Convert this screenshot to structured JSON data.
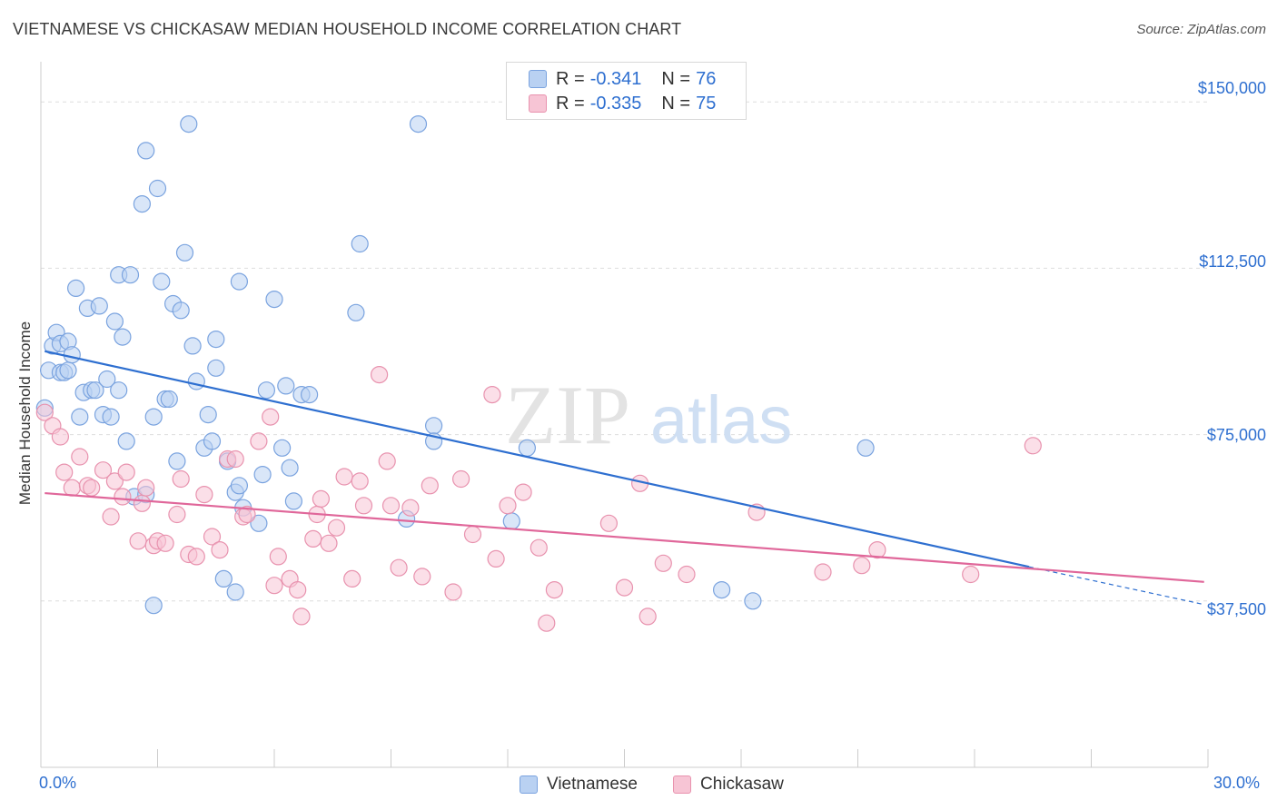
{
  "title": "VIETNAMESE VS CHICKASAW MEDIAN HOUSEHOLD INCOME CORRELATION CHART",
  "source": "Source: ZipAtlas.com",
  "watermark": {
    "zip": "ZIP",
    "atlas": "atlas"
  },
  "legend": {
    "r_label": "R =",
    "n_label": "N =",
    "rows": [
      {
        "r": "-0.341",
        "n": "76",
        "fill": "#b9d1f2",
        "stroke": "#7aa3df"
      },
      {
        "r": "-0.335",
        "n": "75",
        "fill": "#f7c5d5",
        "stroke": "#e892ae"
      }
    ]
  },
  "chart_data": {
    "type": "scatter",
    "title": "VIETNAMESE VS CHICKASAW MEDIAN HOUSEHOLD INCOME CORRELATION CHART",
    "xlabel": "",
    "ylabel": "Median Household Income",
    "xlim": [
      0,
      30
    ],
    "ylim": [
      0,
      157000
    ],
    "x_tick_labels": [
      "0.0%",
      "30.0%"
    ],
    "y_tick_values": [
      37500,
      75000,
      112500,
      150000
    ],
    "y_tick_labels": [
      "$37,500",
      "$75,000",
      "$112,500",
      "$150,000"
    ],
    "grid": true,
    "legend_position": "top-center",
    "series": [
      {
        "name": "Vietnamese",
        "color": "#2e6fd0",
        "marker_fill": "#b9d1f2",
        "marker_stroke": "#7aa3df",
        "trend": {
          "x": [
            0.1,
            25.4,
            29.9
          ],
          "y": [
            93800,
            45200,
            36700
          ],
          "dashed_from": 25.4
        },
        "points": [
          [
            0.1,
            81000
          ],
          [
            0.2,
            89500
          ],
          [
            0.3,
            95000
          ],
          [
            0.4,
            98000
          ],
          [
            0.5,
            95500
          ],
          [
            0.5,
            89000
          ],
          [
            0.6,
            89000
          ],
          [
            0.7,
            89500
          ],
          [
            0.7,
            96000
          ],
          [
            0.8,
            93000
          ],
          [
            0.9,
            108000
          ],
          [
            1.0,
            79000
          ],
          [
            1.1,
            84500
          ],
          [
            1.2,
            103500
          ],
          [
            1.3,
            85000
          ],
          [
            1.4,
            85000
          ],
          [
            1.5,
            104000
          ],
          [
            1.6,
            79500
          ],
          [
            1.7,
            87500
          ],
          [
            1.8,
            79000
          ],
          [
            1.9,
            100500
          ],
          [
            2.0,
            85000
          ],
          [
            2.0,
            111000
          ],
          [
            2.1,
            97000
          ],
          [
            2.2,
            73500
          ],
          [
            2.3,
            111000
          ],
          [
            2.4,
            61000
          ],
          [
            2.6,
            127000
          ],
          [
            2.7,
            139000
          ],
          [
            2.7,
            61500
          ],
          [
            2.9,
            79000
          ],
          [
            2.9,
            36500
          ],
          [
            3.0,
            130500
          ],
          [
            3.1,
            109500
          ],
          [
            3.2,
            83000
          ],
          [
            3.3,
            83000
          ],
          [
            3.4,
            104500
          ],
          [
            3.5,
            69000
          ],
          [
            3.6,
            103000
          ],
          [
            3.7,
            116000
          ],
          [
            3.8,
            145000
          ],
          [
            3.9,
            95000
          ],
          [
            4.0,
            87000
          ],
          [
            4.2,
            72000
          ],
          [
            4.3,
            79500
          ],
          [
            4.4,
            73500
          ],
          [
            4.5,
            90000
          ],
          [
            4.5,
            96500
          ],
          [
            4.7,
            42500
          ],
          [
            4.8,
            69000
          ],
          [
            5.0,
            62000
          ],
          [
            5.0,
            39500
          ],
          [
            5.1,
            63500
          ],
          [
            5.1,
            109500
          ],
          [
            5.2,
            58500
          ],
          [
            5.6,
            55000
          ],
          [
            5.7,
            66000
          ],
          [
            5.8,
            85000
          ],
          [
            6.0,
            105500
          ],
          [
            6.2,
            72000
          ],
          [
            6.3,
            86000
          ],
          [
            6.4,
            67500
          ],
          [
            6.5,
            60000
          ],
          [
            6.7,
            84000
          ],
          [
            6.9,
            84000
          ],
          [
            8.1,
            102500
          ],
          [
            8.2,
            118000
          ],
          [
            9.4,
            56000
          ],
          [
            9.7,
            145000
          ],
          [
            10.1,
            77000
          ],
          [
            10.1,
            73500
          ],
          [
            12.1,
            55500
          ],
          [
            12.5,
            72000
          ],
          [
            17.5,
            40000
          ],
          [
            18.3,
            37500
          ],
          [
            21.2,
            72000
          ]
        ]
      },
      {
        "name": "Chickasaw",
        "color": "#e0679a",
        "marker_fill": "#f7c5d5",
        "marker_stroke": "#e892ae",
        "trend": {
          "x": [
            0.1,
            29.9
          ],
          "y": [
            61800,
            41800
          ]
        },
        "points": [
          [
            0.1,
            80000
          ],
          [
            0.3,
            77000
          ],
          [
            0.5,
            74500
          ],
          [
            0.6,
            66500
          ],
          [
            0.8,
            63000
          ],
          [
            1.0,
            70000
          ],
          [
            1.2,
            63500
          ],
          [
            1.3,
            63000
          ],
          [
            1.6,
            67000
          ],
          [
            1.8,
            56500
          ],
          [
            1.9,
            64500
          ],
          [
            2.1,
            61000
          ],
          [
            2.2,
            66500
          ],
          [
            2.5,
            51000
          ],
          [
            2.6,
            59500
          ],
          [
            2.7,
            63000
          ],
          [
            2.9,
            50000
          ],
          [
            3.0,
            51000
          ],
          [
            3.2,
            50500
          ],
          [
            3.5,
            57000
          ],
          [
            3.6,
            65000
          ],
          [
            3.8,
            48000
          ],
          [
            4.0,
            47500
          ],
          [
            4.2,
            61500
          ],
          [
            4.4,
            52000
          ],
          [
            4.6,
            49000
          ],
          [
            4.8,
            69500
          ],
          [
            5.0,
            69500
          ],
          [
            5.2,
            56500
          ],
          [
            5.3,
            57000
          ],
          [
            5.6,
            73500
          ],
          [
            5.9,
            79000
          ],
          [
            6.0,
            41000
          ],
          [
            6.1,
            47500
          ],
          [
            6.4,
            42500
          ],
          [
            6.6,
            40000
          ],
          [
            6.7,
            34000
          ],
          [
            7.0,
            51500
          ],
          [
            7.1,
            57000
          ],
          [
            7.2,
            60500
          ],
          [
            7.4,
            50500
          ],
          [
            7.6,
            54000
          ],
          [
            7.8,
            65500
          ],
          [
            8.0,
            42500
          ],
          [
            8.2,
            64500
          ],
          [
            8.3,
            59000
          ],
          [
            8.7,
            88500
          ],
          [
            8.9,
            69000
          ],
          [
            9.0,
            59000
          ],
          [
            9.2,
            45000
          ],
          [
            9.5,
            58500
          ],
          [
            9.8,
            43000
          ],
          [
            10.0,
            63500
          ],
          [
            10.6,
            39500
          ],
          [
            10.8,
            65000
          ],
          [
            11.1,
            52500
          ],
          [
            11.6,
            84000
          ],
          [
            11.7,
            47000
          ],
          [
            12.0,
            59000
          ],
          [
            12.4,
            62000
          ],
          [
            12.8,
            49500
          ],
          [
            13.0,
            32500
          ],
          [
            13.2,
            40000
          ],
          [
            14.6,
            55000
          ],
          [
            15.0,
            40500
          ],
          [
            15.4,
            64000
          ],
          [
            15.6,
            34000
          ],
          [
            16.0,
            46000
          ],
          [
            16.6,
            43500
          ],
          [
            18.4,
            57500
          ],
          [
            20.1,
            44000
          ],
          [
            21.1,
            45500
          ],
          [
            21.5,
            49000
          ],
          [
            23.9,
            43500
          ],
          [
            25.5,
            72500
          ]
        ]
      }
    ]
  }
}
